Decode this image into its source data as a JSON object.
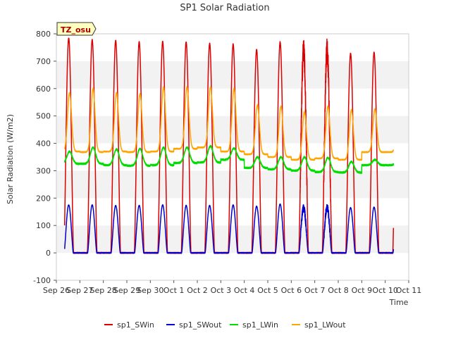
{
  "chart_data": {
    "type": "line",
    "title": "SP1 Solar Radiation",
    "xlabel": "Time",
    "ylabel": "Solar Radiation (W/m2)",
    "ylim": [
      -100,
      800
    ],
    "xlim": [
      0,
      15
    ],
    "yticks": [
      -100,
      0,
      100,
      200,
      300,
      400,
      500,
      600,
      700,
      800
    ],
    "x_tick_labels": [
      "Sep 26",
      "Sep 27",
      "Sep 28",
      "Sep 29",
      "Sep 30",
      "Oct 1",
      "Oct 2",
      "Oct 3",
      "Oct 4",
      "Oct 5",
      "Oct 6",
      "Oct 7",
      "Oct 8",
      "Oct 9",
      "Oct 10",
      "Oct 11"
    ],
    "grid": "horizontal bands",
    "legend_position": "bottom",
    "annotation": "TZ_osu",
    "data_start_day": 0.35,
    "data_end_day": 14.35,
    "daily_peaks": {
      "days": [
        "Sep 26",
        "Sep 27",
        "Sep 28",
        "Sep 29",
        "Sep 30",
        "Oct 1",
        "Oct 2",
        "Oct 3",
        "Oct 4",
        "Oct 5",
        "Oct 6",
        "Oct 7",
        "Oct 8",
        "Oct 9"
      ],
      "sp1_SWin_peak": [
        785,
        778,
        775,
        770,
        772,
        770,
        765,
        762,
        742,
        770,
        740,
        738,
        728,
        732
      ],
      "sp1_SWout_peak": [
        175,
        175,
        173,
        173,
        175,
        173,
        173,
        175,
        170,
        178,
        165,
        167,
        165,
        167
      ],
      "sp1_LWin_min": [
        325,
        325,
        320,
        318,
        320,
        328,
        330,
        340,
        310,
        305,
        300,
        295,
        293,
        320
      ],
      "sp1_LWin_max": [
        370,
        385,
        378,
        380,
        385,
        385,
        390,
        382,
        350,
        350,
        350,
        348,
        333,
        340
      ],
      "sp1_LWout_min": [
        370,
        368,
        370,
        368,
        370,
        380,
        385,
        370,
        360,
        350,
        340,
        345,
        340,
        368
      ],
      "sp1_LWout_max": [
        585,
        600,
        585,
        580,
        605,
        605,
        605,
        600,
        540,
        535,
        515,
        535,
        522,
        525
      ]
    },
    "series": [
      {
        "name": "sp1_SWin",
        "color": "#dd0000"
      },
      {
        "name": "sp1_SWout",
        "color": "#0000cc"
      },
      {
        "name": "sp1_LWin",
        "color": "#00dd00"
      },
      {
        "name": "sp1_LWout",
        "color": "#ffa500"
      }
    ]
  }
}
